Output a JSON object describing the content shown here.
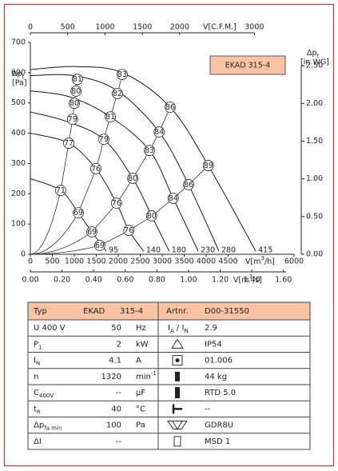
{
  "chart_data": {
    "type": "line",
    "title": "EKAD 315-4",
    "y_label": [
      "Δp",
      {
        "sub": "t"
      }
    ],
    "y_unit": "[Pa]",
    "y2_label": [
      "Δp",
      {
        "sub": "t"
      }
    ],
    "y2_unit": "[in.WG]",
    "x_label": [
      "V[m",
      {
        "sup": "3"
      },
      "/h]"
    ],
    "x2_label": "V[C.F.M.]",
    "x3_label": [
      "V[m",
      {
        "sup": "3"
      },
      "/s]"
    ],
    "xlim": [
      0,
      6000
    ],
    "xticks": [
      0,
      500,
      1000,
      1500,
      2000,
      2500,
      3000,
      3500,
      4000,
      4500,
      6000
    ],
    "ylim": [
      0,
      700
    ],
    "yticks": [
      0,
      100,
      200,
      300,
      400,
      500,
      600,
      700
    ],
    "y2lim": [
      0,
      2.81
    ],
    "y2ticks": [
      {
        "value": 0,
        "label": "0.00"
      },
      {
        "value": 0.5,
        "label": "0.50"
      },
      {
        "value": 1,
        "label": "1.00"
      },
      {
        "value": 1.5,
        "label": "1.50"
      },
      {
        "value": 2,
        "label": "2.00"
      },
      {
        "value": 2.5,
        "label": "2.50"
      }
    ],
    "x2lim": [
      0,
      3531
    ],
    "x2ticks": [
      0,
      500,
      1000,
      1500,
      2000,
      3000
    ],
    "x3lim": [
      0,
      1.6667
    ],
    "x3ticks": [
      {
        "value": 0,
        "label": "0.00"
      },
      {
        "value": 0.2,
        "label": "0.20"
      },
      {
        "value": 0.4,
        "label": "0.40"
      },
      {
        "value": 0.6,
        "label": "0.60"
      },
      {
        "value": 0.8,
        "label": "0.80"
      },
      {
        "value": 1,
        "label": "1.00"
      },
      {
        "value": 1.2,
        "label": "1.20"
      },
      {
        "value": 1.4,
        "label": "1.40"
      },
      {
        "value": 1.6,
        "label": "1.60"
      }
    ],
    "series": [
      {
        "name": "415",
        "color": "#1a1a1a",
        "x": [
          0,
          1000,
          2090,
          3180,
          4050,
          5130
        ],
        "values": [
          610,
          620,
          600,
          486,
          293,
          10
        ]
      },
      {
        "name": "280",
        "color": "#1a1a1a",
        "x": [
          0,
          1000,
          1980,
          2930,
          3600,
          4290
        ],
        "values": [
          590,
          590,
          540,
          404,
          230,
          10
        ]
      },
      {
        "name": "230",
        "color": "#1a1a1a",
        "x": [
          0,
          900,
          1820,
          2710,
          3250,
          3820
        ],
        "values": [
          540,
          520,
          454,
          343,
          185,
          10
        ]
      },
      {
        "name": "180",
        "color": "#1a1a1a",
        "x": [
          0,
          800,
          1670,
          2330,
          2760,
          3160
        ],
        "values": [
          470,
          440,
          380,
          251,
          127,
          10
        ]
      },
      {
        "name": "140",
        "color": "#1a1a1a",
        "x": [
          0,
          873,
          1490,
          1960,
          2240,
          2580
        ],
        "values": [
          400,
          367,
          283,
          169,
          79,
          10
        ]
      },
      {
        "name": "95",
        "color": "#1a1a1a",
        "x": [
          0,
          690,
          1090,
          1400,
          1730
        ],
        "values": [
          250,
          211,
          137,
          74,
          10
        ]
      }
    ],
    "operating_lines": [
      {
        "x": [
          690,
          873,
          960,
          1000,
          1040,
          1070
        ],
        "y": [
          211,
          367,
          446,
          499,
          539,
          578
        ],
        "labels": [
          71,
          77,
          79,
          80,
          80,
          81
        ]
      },
      {
        "x": [
          1090,
          1490,
          1670,
          1820,
          1980,
          2090
        ],
        "y": [
          137,
          283,
          380,
          454,
          531,
          594
        ],
        "labels": [
          69,
          76,
          79,
          81,
          82,
          83
        ]
      },
      {
        "x": [
          1400,
          1960,
          2330,
          2710,
          2930,
          3180
        ],
        "y": [
          74,
          169,
          251,
          343,
          404,
          486
        ],
        "labels": [
          69,
          76,
          80,
          83,
          84,
          86
        ]
      },
      {
        "x": [
          1580,
          2240,
          2760,
          3250,
          3600,
          4050
        ],
        "y": [
          29,
          79,
          127,
          185,
          230,
          293
        ],
        "labels": [
          69,
          76,
          80,
          84,
          86,
          89
        ]
      }
    ]
  },
  "table": {
    "header": [
      "Typ",
      "EKAD",
      "315-4",
      "Artnr.",
      "D00-31550"
    ],
    "rows": [
      {
        "label": "U   400   V",
        "value": "50",
        "unit": "Hz",
        "spec_label": [
          "I",
          {
            "sub": "A"
          },
          " / I",
          {
            "sub": "N"
          }
        ],
        "spec": "2.9"
      },
      {
        "label": [
          "P",
          {
            "sub": "1"
          }
        ],
        "value": "2",
        "unit": "kW",
        "spec": "IP54"
      },
      {
        "label": [
          "I",
          {
            "sub": "N"
          }
        ],
        "value": "4.1",
        "unit": "A",
        "spec": "01.006"
      },
      {
        "label": "n",
        "value": "1320",
        "unit": [
          "min",
          {
            "sup": "-1"
          }
        ],
        "spec": "44 kg"
      },
      {
        "label": [
          "C",
          {
            "sub": "400V"
          }
        ],
        "value": "--",
        "unit": "µF",
        "spec": "RTD 5.0"
      },
      {
        "label": [
          "t",
          {
            "sub": "R"
          }
        ],
        "value": "40",
        "unit": "°C",
        "spec": "--"
      },
      {
        "label": [
          "Δp",
          {
            "sub": "fa min"
          }
        ],
        "value": "100",
        "unit": "Pa",
        "spec": "GDR8U"
      },
      {
        "label": "ΔI",
        "value": "--",
        "spec": "MSD 1"
      }
    ]
  }
}
